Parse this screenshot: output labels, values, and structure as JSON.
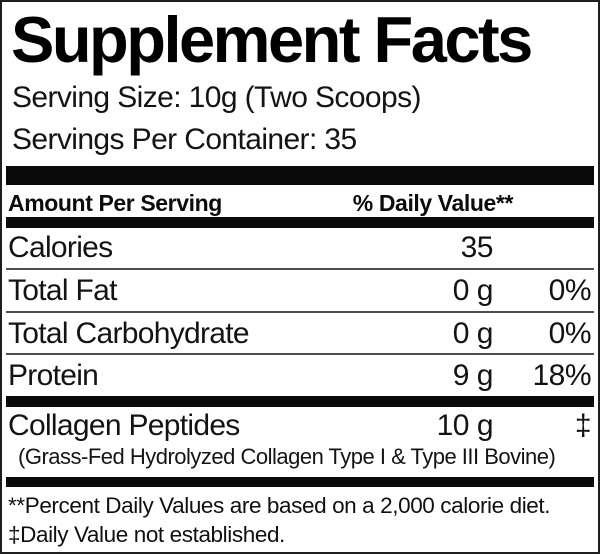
{
  "label": {
    "title": "Supplement Facts",
    "serving_size": "Serving Size: 10g (Two Scoops)",
    "servings_per_container": "Servings Per Container: 35",
    "header": {
      "amount": "Amount Per Serving",
      "daily_value": "% Daily Value**"
    },
    "rows": [
      {
        "name": "Calories",
        "amount": "35",
        "dv": ""
      },
      {
        "name": "Total Fat",
        "amount": "0 g",
        "dv": "0%"
      },
      {
        "name": "Total Carbohydrate",
        "amount": "0 g",
        "dv": "0%"
      },
      {
        "name": "Protein",
        "amount": "9 g",
        "dv": "18%"
      }
    ],
    "ingredient": {
      "name": "Collagen Peptides",
      "amount": "10 g",
      "dv": "‡",
      "description": "(Grass-Fed Hydrolyzed Collagen Type I & Type III Bovine)"
    },
    "footnotes": [
      "**Percent Daily Values are based on a 2,000 calorie diet.",
      "‡Daily Value not established."
    ],
    "colors": {
      "text": "#111111",
      "bars": "#0a0a0a",
      "separators": "#4e4e4e",
      "background": "#ffffff"
    }
  }
}
